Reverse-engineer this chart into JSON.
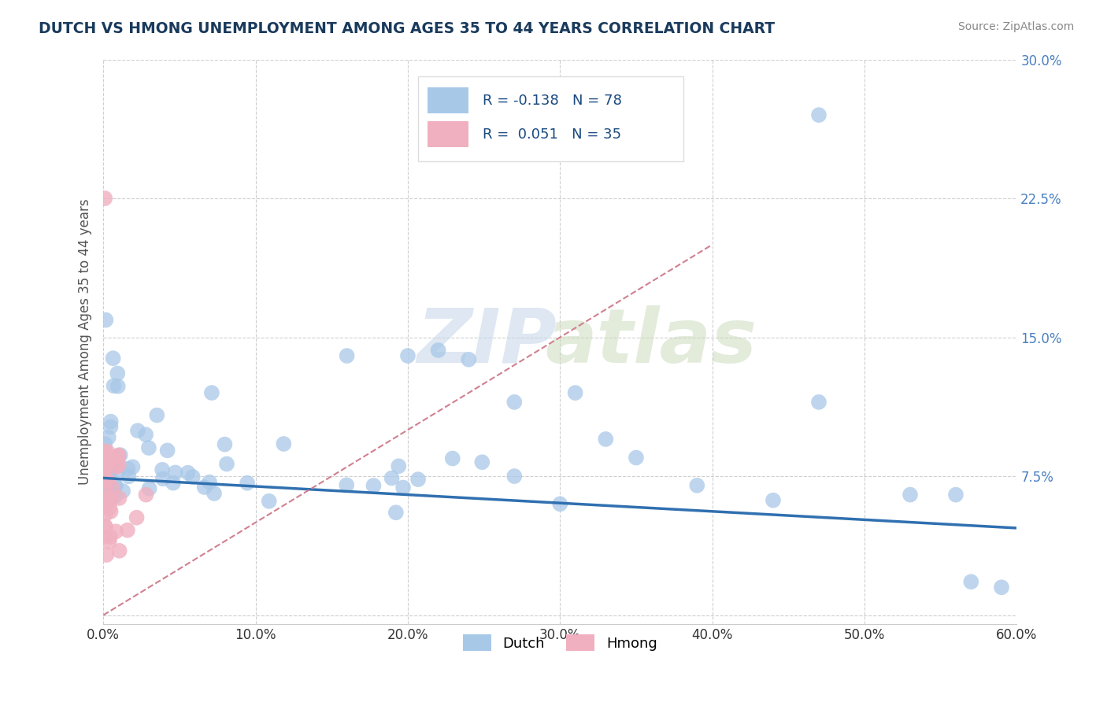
{
  "title": "DUTCH VS HMONG UNEMPLOYMENT AMONG AGES 35 TO 44 YEARS CORRELATION CHART",
  "source": "Source: ZipAtlas.com",
  "ylabel": "Unemployment Among Ages 35 to 44 years",
  "xlim": [
    0.0,
    0.6
  ],
  "ylim": [
    -0.005,
    0.3
  ],
  "xtick_positions": [
    0.0,
    0.1,
    0.2,
    0.3,
    0.4,
    0.5,
    0.6
  ],
  "xtick_labels": [
    "0.0%",
    "10.0%",
    "20.0%",
    "30.0%",
    "40.0%",
    "50.0%",
    "60.0%"
  ],
  "ytick_positions": [
    0.0,
    0.075,
    0.15,
    0.225,
    0.3
  ],
  "ytick_labels": [
    "",
    "7.5%",
    "15.0%",
    "22.5%",
    "30.0%"
  ],
  "dutch_color": "#a8c8e8",
  "hmong_color": "#f0b0c0",
  "dutch_line_color": "#3070b0",
  "hmong_line_color": "#d08090",
  "background_color": "#ffffff",
  "title_color": "#1a3a5c",
  "source_color": "#888888",
  "ytick_color": "#4a80c0",
  "xtick_color": "#333333",
  "legend_dutch_r": "-0.138",
  "legend_dutch_n": "78",
  "legend_hmong_r": "0.051",
  "legend_hmong_n": "35",
  "dutch_trend_x0": 0.0,
  "dutch_trend_y0": 0.074,
  "dutch_trend_x1": 0.6,
  "dutch_trend_y1": 0.047,
  "hmong_trend_x0": 0.0,
  "hmong_trend_y0": 0.0,
  "hmong_trend_x1": 0.6,
  "hmong_trend_y1": 0.3
}
